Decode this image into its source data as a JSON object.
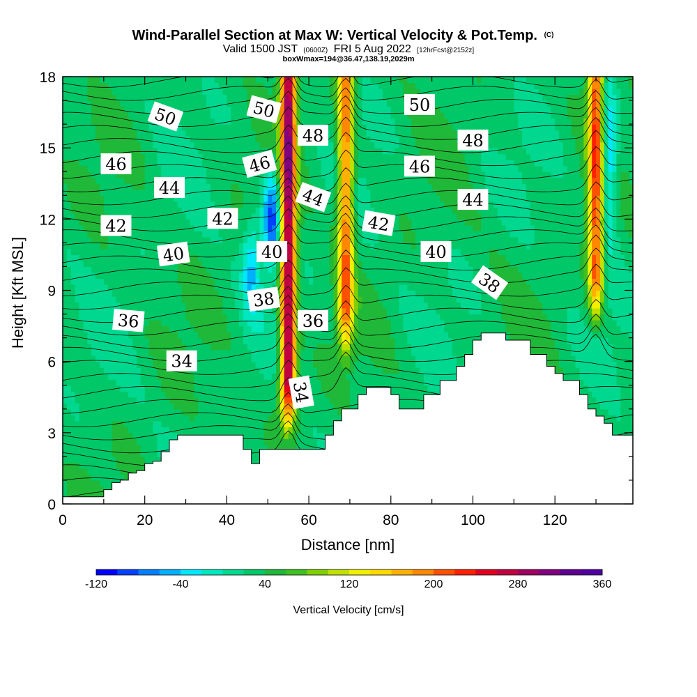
{
  "chart_data": {
    "type": "heatmap",
    "title": "Wind-Parallel Section at Max W: Vertical Velocity & Pot.Temp.",
    "title_mark": "(C)",
    "subtitle_main": "Valid 1500 JST",
    "subtitle_utc": "(0600Z)",
    "subtitle_date": "FRI 5 Aug 2022",
    "subtitle_fcst": "[12hrFcst@2152z]",
    "subtitle2": "boxWmax=194@36.47,138.19,2029m",
    "xlabel": "Distance [nm]",
    "ylabel": "Height [Kft MSL]",
    "xlim": [
      0,
      139
    ],
    "ylim": [
      0,
      18
    ],
    "xticks": [
      0,
      20,
      40,
      60,
      80,
      100,
      120
    ],
    "yticks": [
      0,
      3,
      6,
      9,
      12,
      15,
      18
    ],
    "colorbar": {
      "label": "Vertical Velocity [cm/s]",
      "min": -120,
      "max": 360,
      "step": 20,
      "ticks": [
        -120,
        -40,
        40,
        120,
        200,
        280,
        360
      ],
      "colors": [
        "#0000ff",
        "#0040ff",
        "#0080ff",
        "#00b0ff",
        "#00e8ff",
        "#00e8c0",
        "#00d890",
        "#00c868",
        "#20b838",
        "#40c020",
        "#80d000",
        "#c0e000",
        "#f0f000",
        "#ffd800",
        "#ffb000",
        "#ff8800",
        "#ff5000",
        "#ff2000",
        "#e00020",
        "#c00040",
        "#a00060",
        "#800080",
        "#600090",
        "#5000a0"
      ]
    },
    "terrain_profile": {
      "x": [
        0,
        10,
        12,
        14,
        16,
        18,
        20,
        22,
        24,
        26,
        28,
        30,
        32,
        34,
        36,
        38,
        40,
        42,
        44,
        46,
        48,
        50,
        52,
        54,
        56,
        58,
        60,
        62,
        64,
        66,
        68,
        70,
        72,
        74,
        76,
        78,
        80,
        82,
        84,
        86,
        88,
        90,
        92,
        94,
        96,
        98,
        100,
        102,
        104,
        106,
        108,
        110,
        112,
        114,
        116,
        118,
        120,
        122,
        124,
        126,
        128,
        130,
        132,
        134,
        136,
        138,
        139
      ],
      "y": [
        0.3,
        0.6,
        0.9,
        1.0,
        1.3,
        1.4,
        1.7,
        1.8,
        2.2,
        2.7,
        2.9,
        2.9,
        2.9,
        2.9,
        2.9,
        2.9,
        2.9,
        2.9,
        2.3,
        1.7,
        2.3,
        2.3,
        2.3,
        2.3,
        2.3,
        2.3,
        2.3,
        2.3,
        2.9,
        3.5,
        4.0,
        4.0,
        4.6,
        4.9,
        4.9,
        4.9,
        4.6,
        4.0,
        4.0,
        4.0,
        4.6,
        4.6,
        5.2,
        5.2,
        5.8,
        6.3,
        6.9,
        7.2,
        7.2,
        7.2,
        6.9,
        6.9,
        6.9,
        6.3,
        6.3,
        5.8,
        5.5,
        5.2,
        5.2,
        4.6,
        4.0,
        3.7,
        3.4,
        2.9,
        2.9,
        2.9,
        2.3
      ]
    },
    "updrafts": [
      {
        "x": 55,
        "peak_cms": 300,
        "ymin": 2.5,
        "ymax": 18
      },
      {
        "x": 69,
        "peak_cms": 200,
        "ymin": 5.5,
        "ymax": 18
      },
      {
        "x": 130,
        "peak_cms": 220,
        "ymin": 7.0,
        "ymax": 18
      }
    ],
    "downdrafts": [
      {
        "x": 51,
        "min_cms": -100,
        "ymin": 10,
        "ymax": 14
      },
      {
        "x": 133,
        "min_cms": -60,
        "ymin": 11,
        "ymax": 18
      },
      {
        "x": 46,
        "min_cms": -40,
        "ymin": 8,
        "ymax": 12
      }
    ],
    "theta_contours": [
      {
        "value": 34,
        "x": 29,
        "y": 6.0,
        "rot": 0
      },
      {
        "value": 34,
        "x": 58,
        "y": 4.7,
        "rot": 80
      },
      {
        "value": 36,
        "x": 16,
        "y": 7.7,
        "rot": 5
      },
      {
        "value": 36,
        "x": 61,
        "y": 7.7,
        "rot": 0
      },
      {
        "value": 38,
        "x": 49,
        "y": 8.6,
        "rot": -8
      },
      {
        "value": 38,
        "x": 104,
        "y": 9.3,
        "rot": 35
      },
      {
        "value": 40,
        "x": 27,
        "y": 10.5,
        "rot": -8
      },
      {
        "value": 40,
        "x": 51,
        "y": 10.6,
        "rot": 0
      },
      {
        "value": 40,
        "x": 91,
        "y": 10.6,
        "rot": 0
      },
      {
        "value": 42,
        "x": 13,
        "y": 11.7,
        "rot": 0
      },
      {
        "value": 42,
        "x": 39,
        "y": 12.0,
        "rot": 0
      },
      {
        "value": 42,
        "x": 77,
        "y": 11.8,
        "rot": 10
      },
      {
        "value": 44,
        "x": 26,
        "y": 13.3,
        "rot": 0
      },
      {
        "value": 44,
        "x": 61,
        "y": 12.9,
        "rot": 20
      },
      {
        "value": 44,
        "x": 100,
        "y": 12.8,
        "rot": 0
      },
      {
        "value": 46,
        "x": 13,
        "y": 14.3,
        "rot": 0
      },
      {
        "value": 46,
        "x": 48,
        "y": 14.3,
        "rot": -15
      },
      {
        "value": 46,
        "x": 87,
        "y": 14.2,
        "rot": 0
      },
      {
        "value": 48,
        "x": 61,
        "y": 15.5,
        "rot": 0
      },
      {
        "value": 48,
        "x": 100,
        "y": 15.3,
        "rot": 0
      },
      {
        "value": 50,
        "x": 25,
        "y": 16.3,
        "rot": 20
      },
      {
        "value": 50,
        "x": 49,
        "y": 16.6,
        "rot": 15
      },
      {
        "value": 50,
        "x": 87,
        "y": 16.8,
        "rot": 0
      }
    ]
  }
}
